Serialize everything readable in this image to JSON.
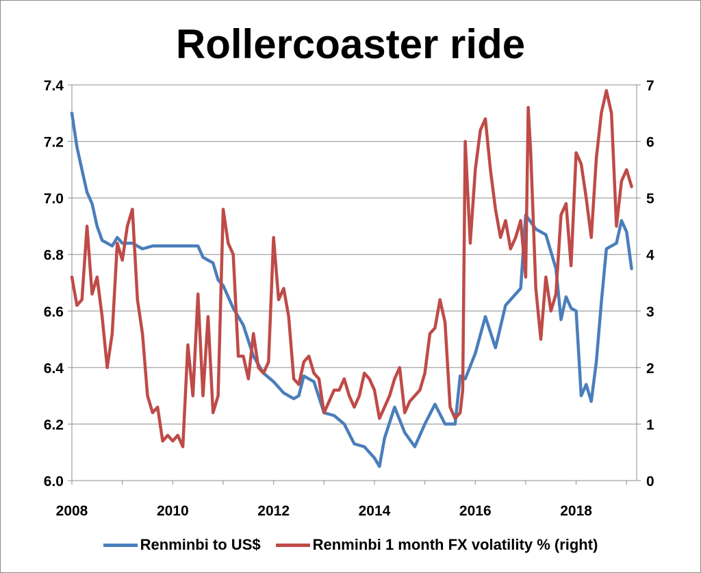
{
  "chart_data": {
    "type": "line",
    "title": "Rollercoaster ride",
    "x_ticks": [
      "2008",
      "2010",
      "2012",
      "2014",
      "2016",
      "2018"
    ],
    "x_range": [
      2008,
      2019.2
    ],
    "left_axis": {
      "ylim": [
        6.0,
        7.4
      ],
      "ticks": [
        "6.0",
        "6.2",
        "6.4",
        "6.6",
        "6.8",
        "7.0",
        "7.2",
        "7.4"
      ]
    },
    "right_axis": {
      "ylim": [
        0,
        7
      ],
      "ticks": [
        "0",
        "1",
        "2",
        "3",
        "4",
        "5",
        "6",
        "7"
      ]
    },
    "grid": true,
    "legend_position": "bottom",
    "series": [
      {
        "name": "Renminbi to US$",
        "axis": "left",
        "color": "#4a7ebb",
        "x": [
          2008.0,
          2008.1,
          2008.2,
          2008.3,
          2008.4,
          2008.5,
          2008.6,
          2008.7,
          2008.8,
          2008.9,
          2009.0,
          2009.2,
          2009.4,
          2009.6,
          2009.8,
          2010.0,
          2010.2,
          2010.4,
          2010.5,
          2010.6,
          2010.7,
          2010.8,
          2010.9,
          2011.0,
          2011.2,
          2011.4,
          2011.6,
          2011.8,
          2012.0,
          2012.2,
          2012.4,
          2012.5,
          2012.6,
          2012.7,
          2012.8,
          2013.0,
          2013.2,
          2013.4,
          2013.6,
          2013.8,
          2014.0,
          2014.1,
          2014.2,
          2014.4,
          2014.6,
          2014.8,
          2015.0,
          2015.2,
          2015.4,
          2015.6,
          2015.7,
          2015.8,
          2016.0,
          2016.2,
          2016.4,
          2016.6,
          2016.8,
          2016.9,
          2017.0,
          2017.2,
          2017.4,
          2017.6,
          2017.7,
          2017.8,
          2017.9,
          2018.0,
          2018.1,
          2018.2,
          2018.3,
          2018.4,
          2018.5,
          2018.6,
          2018.8,
          2018.9,
          2019.0,
          2019.1
        ],
        "values": [
          7.3,
          7.18,
          7.1,
          7.02,
          6.98,
          6.9,
          6.85,
          6.84,
          6.83,
          6.86,
          6.84,
          6.84,
          6.82,
          6.83,
          6.83,
          6.83,
          6.83,
          6.83,
          6.83,
          6.79,
          6.78,
          6.77,
          6.71,
          6.69,
          6.61,
          6.55,
          6.44,
          6.38,
          6.35,
          6.31,
          6.29,
          6.3,
          6.37,
          6.36,
          6.35,
          6.24,
          6.23,
          6.2,
          6.13,
          6.12,
          6.08,
          6.05,
          6.15,
          6.26,
          6.17,
          6.12,
          6.2,
          6.27,
          6.2,
          6.2,
          6.37,
          6.36,
          6.45,
          6.58,
          6.47,
          6.62,
          6.66,
          6.68,
          6.94,
          6.89,
          6.87,
          6.75,
          6.57,
          6.65,
          6.61,
          6.6,
          6.3,
          6.34,
          6.28,
          6.42,
          6.63,
          6.82,
          6.84,
          6.92,
          6.88,
          6.75
        ]
      },
      {
        "name": "Renminbi 1 month FX volatility % (right)",
        "axis": "right",
        "color": "#be4b48",
        "x": [
          2008.0,
          2008.1,
          2008.2,
          2008.3,
          2008.4,
          2008.5,
          2008.6,
          2008.7,
          2008.8,
          2008.9,
          2009.0,
          2009.1,
          2009.2,
          2009.3,
          2009.4,
          2009.5,
          2009.6,
          2009.7,
          2009.8,
          2009.9,
          2010.0,
          2010.1,
          2010.2,
          2010.3,
          2010.4,
          2010.5,
          2010.6,
          2010.7,
          2010.8,
          2010.9,
          2011.0,
          2011.1,
          2011.2,
          2011.3,
          2011.4,
          2011.5,
          2011.6,
          2011.7,
          2011.8,
          2011.9,
          2012.0,
          2012.1,
          2012.2,
          2012.3,
          2012.4,
          2012.5,
          2012.6,
          2012.7,
          2012.8,
          2012.9,
          2013.0,
          2013.1,
          2013.2,
          2013.3,
          2013.4,
          2013.5,
          2013.6,
          2013.7,
          2013.8,
          2013.9,
          2014.0,
          2014.1,
          2014.2,
          2014.3,
          2014.4,
          2014.5,
          2014.6,
          2014.7,
          2014.8,
          2014.9,
          2015.0,
          2015.1,
          2015.2,
          2015.3,
          2015.4,
          2015.5,
          2015.6,
          2015.7,
          2015.75,
          2015.8,
          2015.9,
          2016.0,
          2016.1,
          2016.2,
          2016.3,
          2016.4,
          2016.5,
          2016.6,
          2016.7,
          2016.8,
          2016.9,
          2017.0,
          2017.05,
          2017.1,
          2017.2,
          2017.3,
          2017.4,
          2017.5,
          2017.6,
          2017.7,
          2017.8,
          2017.9,
          2018.0,
          2018.1,
          2018.2,
          2018.3,
          2018.4,
          2018.5,
          2018.6,
          2018.7,
          2018.8,
          2018.9,
          2019.0,
          2019.1
        ],
        "values": [
          3.6,
          3.1,
          3.2,
          4.5,
          3.3,
          3.6,
          2.9,
          2.0,
          2.6,
          4.2,
          3.9,
          4.5,
          4.8,
          3.2,
          2.6,
          1.5,
          1.2,
          1.3,
          0.7,
          0.8,
          0.7,
          0.8,
          0.6,
          2.4,
          1.5,
          3.3,
          1.5,
          2.9,
          1.2,
          1.5,
          4.8,
          4.2,
          4.0,
          2.2,
          2.2,
          1.8,
          2.6,
          2.0,
          1.9,
          2.1,
          4.3,
          3.2,
          3.4,
          2.9,
          1.8,
          1.7,
          2.1,
          2.2,
          1.9,
          1.8,
          1.2,
          1.4,
          1.6,
          1.6,
          1.8,
          1.5,
          1.3,
          1.5,
          1.9,
          1.8,
          1.6,
          1.1,
          1.3,
          1.5,
          1.8,
          2.0,
          1.2,
          1.4,
          1.5,
          1.6,
          1.9,
          2.6,
          2.7,
          3.2,
          2.8,
          1.3,
          1.1,
          1.2,
          1.6,
          6.0,
          4.2,
          5.5,
          6.2,
          6.4,
          5.5,
          4.8,
          4.3,
          4.6,
          4.1,
          4.3,
          4.6,
          3.6,
          6.6,
          5.8,
          3.4,
          2.5,
          3.6,
          3.0,
          3.3,
          4.7,
          4.9,
          3.8,
          5.8,
          5.6,
          5.0,
          4.3,
          5.7,
          6.5,
          6.9,
          6.5,
          4.5,
          5.3,
          5.5,
          5.2
        ]
      }
    ]
  }
}
